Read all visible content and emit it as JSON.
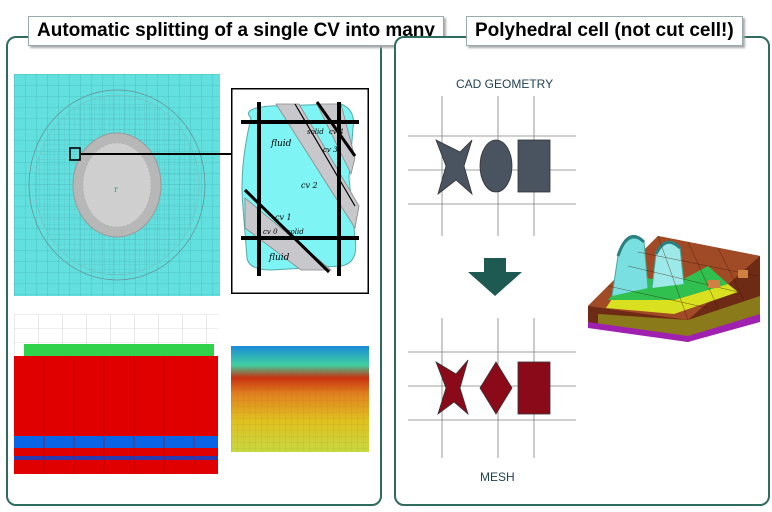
{
  "left_panel": {
    "title": "Automatic splitting of a single CV into many",
    "zoom": {
      "labels": [
        "fluid",
        "solid",
        "cv 4",
        "cv 3",
        "cv 2",
        "cv 1",
        "cv 0",
        "solid",
        "fluid"
      ]
    }
  },
  "right_panel": {
    "title": "Polyhedral cell (not cut cell!)",
    "cad_label": "CAD GEOMETRY",
    "mesh_label": "MESH"
  },
  "colors": {
    "panel_border": "#2f6b5e",
    "cad_fill": "#4a5360",
    "mesh_fill": "#8b0a1a",
    "arrow": "#1f5a52",
    "cyan": "#5fe0e0",
    "red": "#e00000",
    "blue": "#0060e0",
    "green": "#20c040"
  }
}
